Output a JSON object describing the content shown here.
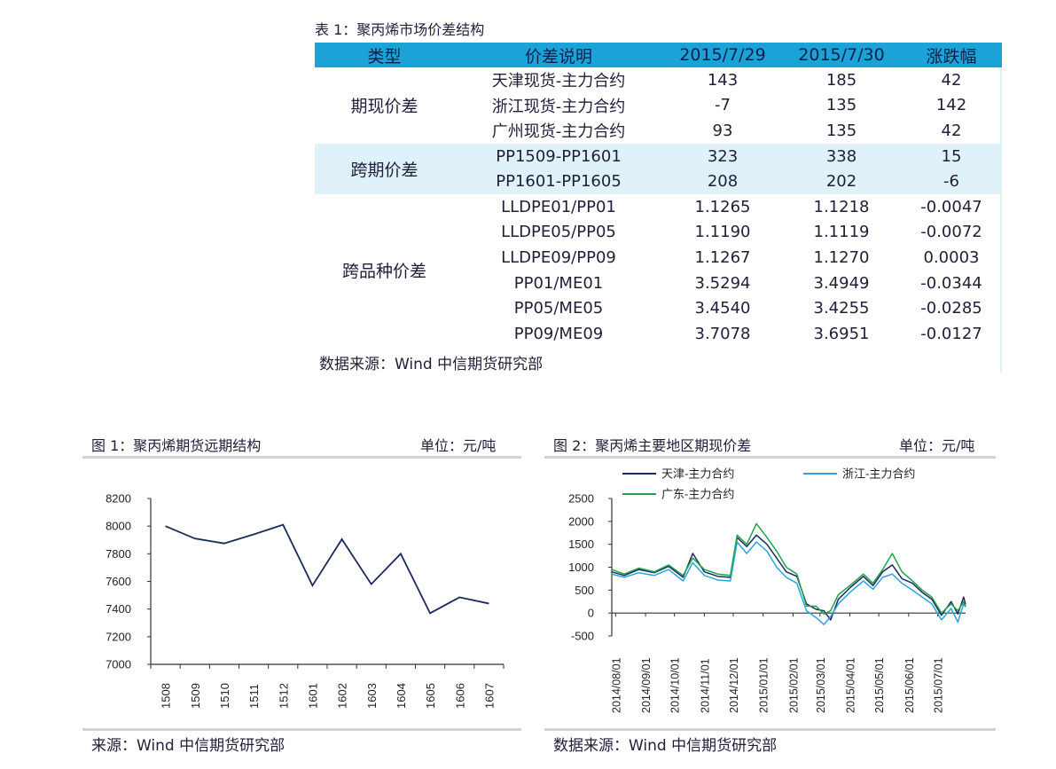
{
  "table": {
    "caption": "表 1：聚丙烯市场价差结构",
    "headers": [
      "类型",
      "价差说明",
      "2015/7/29",
      "2015/7/30",
      "涨跌幅"
    ],
    "groups": [
      {
        "type": "期现价差",
        "band": false,
        "rows": [
          [
            "天津现货-主力合约",
            "143",
            "185",
            "42"
          ],
          [
            "浙江现货-主力合约",
            "-7",
            "135",
            "142"
          ],
          [
            "广州现货-主力合约",
            "93",
            "135",
            "42"
          ]
        ]
      },
      {
        "type": "跨期价差",
        "band": true,
        "rows": [
          [
            "PP1509-PP1601",
            "323",
            "338",
            "15"
          ],
          [
            "PP1601-PP1605",
            "208",
            "202",
            "-6"
          ]
        ]
      },
      {
        "type": "跨品种价差",
        "band": false,
        "rows": [
          [
            "LLDPE01/PP01",
            "1.1265",
            "1.1218",
            "-0.0047"
          ],
          [
            "LLDPE05/PP05",
            "1.1190",
            "1.1119",
            "-0.0072"
          ],
          [
            "LLDPE09/PP09",
            "1.1267",
            "1.1270",
            "0.0003"
          ],
          [
            "PP01/ME01",
            "3.5294",
            "3.4949",
            "-0.0344"
          ],
          [
            "PP05/ME05",
            "3.4540",
            "3.4255",
            "-0.0285"
          ],
          [
            "PP09/ME09",
            "3.7078",
            "3.6951",
            "-0.0127"
          ]
        ]
      }
    ],
    "source": "数据来源：Wind  中信期货研究部"
  },
  "colors": {
    "header_fill": "#1ba3d8",
    "band_fill": "#e0f2f9",
    "navy": "#1b2a5c",
    "light_blue": "#2aa5dd",
    "green": "#1ea54a"
  },
  "figure1": {
    "caption": "图 1：聚丙烯期货远期结构",
    "unit": "单位：元/吨",
    "source": "来源：Wind  中信期货研究部"
  },
  "figure2": {
    "caption": "图 2：聚丙烯主要地区期现价差",
    "unit": "单位：元/吨",
    "source": "数据来源：Wind  中信期货研究部"
  },
  "chart_data": [
    {
      "type": "line",
      "title": "",
      "categories": [
        "1508",
        "1509",
        "1510",
        "1511",
        "1512",
        "1601",
        "1602",
        "1603",
        "1604",
        "1605",
        "1606",
        "1607"
      ],
      "values": [
        8000,
        7910,
        7875,
        7940,
        8010,
        7570,
        7905,
        7580,
        7800,
        7370,
        7485,
        7440
      ],
      "ylim": [
        7000,
        8200
      ],
      "yticks": [
        7000,
        7200,
        7400,
        7600,
        7800,
        8000,
        8200
      ],
      "color": "#1b2a5c",
      "grid": false
    },
    {
      "type": "line",
      "title": "",
      "x_ticks": [
        "2014/08/01",
        "2014/09/01",
        "2014/10/01",
        "2014/11/01",
        "2014/12/01",
        "2015/01/01",
        "2015/02/01",
        "2015/03/01",
        "2015/04/01",
        "2015/05/01",
        "2015/06/01",
        "2015/07/01"
      ],
      "ylim": [
        -500,
        2500
      ],
      "yticks": [
        -500,
        0,
        500,
        1000,
        1500,
        2000,
        2500
      ],
      "legend": "top",
      "grid": false,
      "x_range": [
        "2014-07-28",
        "2015-07-30"
      ],
      "series": [
        {
          "name": "天津-主力合约",
          "color": "#1b2a5c",
          "points": [
            [
              "2014-07-28",
              900
            ],
            [
              "2014-08-10",
              820
            ],
            [
              "2014-08-25",
              950
            ],
            [
              "2014-09-10",
              880
            ],
            [
              "2014-09-25",
              1020
            ],
            [
              "2014-10-10",
              780
            ],
            [
              "2014-10-20",
              1300
            ],
            [
              "2014-11-01",
              900
            ],
            [
              "2014-11-15",
              800
            ],
            [
              "2014-11-28",
              780
            ],
            [
              "2014-12-05",
              1650
            ],
            [
              "2014-12-15",
              1450
            ],
            [
              "2014-12-25",
              1700
            ],
            [
              "2015-01-05",
              1500
            ],
            [
              "2015-01-15",
              1200
            ],
            [
              "2015-01-25",
              900
            ],
            [
              "2015-02-05",
              800
            ],
            [
              "2015-02-15",
              200
            ],
            [
              "2015-02-25",
              80
            ],
            [
              "2015-03-05",
              50
            ],
            [
              "2015-03-12",
              -150
            ],
            [
              "2015-03-20",
              300
            ],
            [
              "2015-04-01",
              550
            ],
            [
              "2015-04-15",
              800
            ],
            [
              "2015-04-25",
              600
            ],
            [
              "2015-05-05",
              900
            ],
            [
              "2015-05-15",
              1050
            ],
            [
              "2015-05-25",
              750
            ],
            [
              "2015-06-05",
              650
            ],
            [
              "2015-06-15",
              450
            ],
            [
              "2015-06-25",
              300
            ],
            [
              "2015-07-05",
              -50
            ],
            [
              "2015-07-15",
              250
            ],
            [
              "2015-07-22",
              -20
            ],
            [
              "2015-07-28",
              350
            ],
            [
              "2015-07-30",
              185
            ]
          ]
        },
        {
          "name": "浙江-主力合约",
          "color": "#2aa5dd",
          "points": [
            [
              "2014-07-28",
              850
            ],
            [
              "2014-08-10",
              780
            ],
            [
              "2014-08-25",
              880
            ],
            [
              "2014-09-10",
              820
            ],
            [
              "2014-09-25",
              950
            ],
            [
              "2014-10-10",
              700
            ],
            [
              "2014-10-20",
              1100
            ],
            [
              "2014-11-01",
              820
            ],
            [
              "2014-11-15",
              720
            ],
            [
              "2014-11-28",
              700
            ],
            [
              "2014-12-05",
              1550
            ],
            [
              "2014-12-15",
              1300
            ],
            [
              "2014-12-25",
              1550
            ],
            [
              "2015-01-05",
              1350
            ],
            [
              "2015-01-15",
              1000
            ],
            [
              "2015-01-25",
              780
            ],
            [
              "2015-02-05",
              650
            ],
            [
              "2015-02-15",
              50
            ],
            [
              "2015-02-25",
              -100
            ],
            [
              "2015-03-05",
              -250
            ],
            [
              "2015-03-12",
              -80
            ],
            [
              "2015-03-20",
              200
            ],
            [
              "2015-04-01",
              450
            ],
            [
              "2015-04-15",
              700
            ],
            [
              "2015-04-25",
              520
            ],
            [
              "2015-05-05",
              780
            ],
            [
              "2015-05-15",
              850
            ],
            [
              "2015-05-25",
              650
            ],
            [
              "2015-06-05",
              500
            ],
            [
              "2015-06-15",
              350
            ],
            [
              "2015-06-25",
              200
            ],
            [
              "2015-07-05",
              -150
            ],
            [
              "2015-07-15",
              100
            ],
            [
              "2015-07-22",
              -200
            ],
            [
              "2015-07-28",
              200
            ],
            [
              "2015-07-30",
              135
            ]
          ]
        },
        {
          "name": "广东-主力合约",
          "color": "#1ea54a",
          "points": [
            [
              "2014-07-28",
              950
            ],
            [
              "2014-08-10",
              850
            ],
            [
              "2014-08-25",
              980
            ],
            [
              "2014-09-10",
              900
            ],
            [
              "2014-09-25",
              1050
            ],
            [
              "2014-10-10",
              820
            ],
            [
              "2014-10-20",
              1200
            ],
            [
              "2014-11-01",
              950
            ],
            [
              "2014-11-15",
              850
            ],
            [
              "2014-11-28",
              820
            ],
            [
              "2014-12-05",
              1700
            ],
            [
              "2014-12-15",
              1500
            ],
            [
              "2014-12-25",
              1950
            ],
            [
              "2015-01-05",
              1650
            ],
            [
              "2015-01-15",
              1350
            ],
            [
              "2015-01-25",
              1000
            ],
            [
              "2015-02-05",
              850
            ],
            [
              "2015-02-15",
              150
            ],
            [
              "2015-02-25",
              150
            ],
            [
              "2015-03-05",
              -20
            ],
            [
              "2015-03-12",
              50
            ],
            [
              "2015-03-20",
              400
            ],
            [
              "2015-04-01",
              600
            ],
            [
              "2015-04-15",
              850
            ],
            [
              "2015-04-25",
              650
            ],
            [
              "2015-05-05",
              950
            ],
            [
              "2015-05-15",
              1300
            ],
            [
              "2015-05-25",
              900
            ],
            [
              "2015-06-05",
              700
            ],
            [
              "2015-06-15",
              500
            ],
            [
              "2015-06-25",
              350
            ],
            [
              "2015-07-05",
              0
            ],
            [
              "2015-07-15",
              200
            ],
            [
              "2015-07-22",
              50
            ],
            [
              "2015-07-28",
              250
            ],
            [
              "2015-07-30",
              135
            ]
          ]
        }
      ]
    }
  ]
}
